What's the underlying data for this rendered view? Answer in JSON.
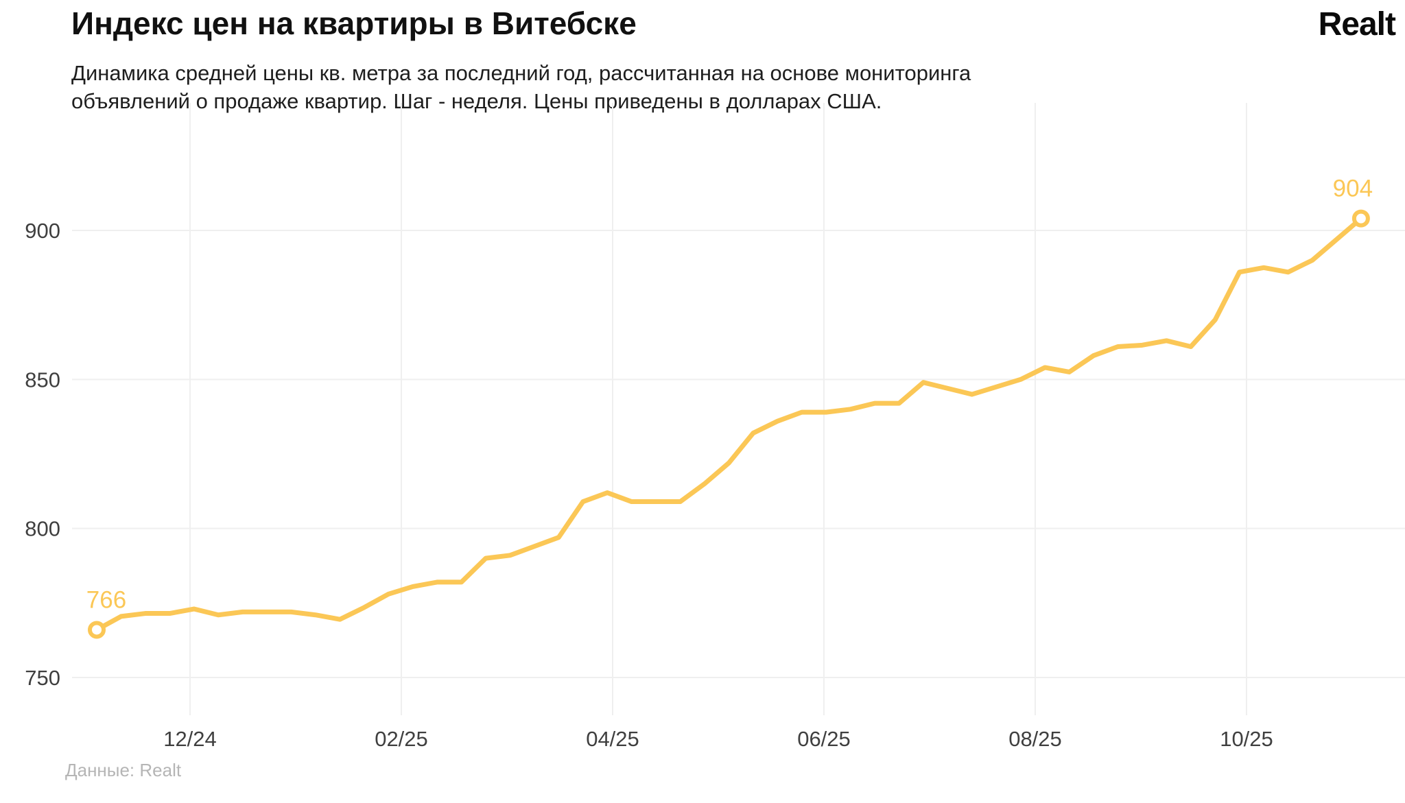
{
  "header": {
    "title": "Индекс цен на квартиры в Витебске",
    "subtitle_line1": "Динамика средней цены кв. метра за последний год, рассчитанная на основе мониторинга",
    "subtitle_line2": "объявлений о продаже квартир. Шаг - неделя. Цены приведены в долларах США.",
    "logo": "Realt"
  },
  "footer": {
    "source": "Данные: Realt"
  },
  "chart_data": {
    "type": "line",
    "title": "Индекс цен на квартиры в Витебске",
    "series_name": "Средняя цена кв. метра, USD",
    "step": "неделя",
    "x_tick_labels": [
      "12/24",
      "02/25",
      "04/25",
      "06/25",
      "08/25",
      "10/25"
    ],
    "y_ticks": [
      900,
      850,
      800,
      750
    ],
    "y_axis_range": [
      737,
      915
    ],
    "grid": true,
    "legend_position": "none",
    "line_color": "#FBC756",
    "axis_text_color": "#3f3f3f",
    "grid_color": "#efefef",
    "first_point_label": "766",
    "last_point_label": "904",
    "values": [
      766,
      770.5,
      771.5,
      771.5,
      773,
      771,
      772,
      772,
      772,
      771,
      769.5,
      773.5,
      778,
      780.5,
      782,
      782,
      790,
      791,
      794,
      797,
      809,
      812,
      809,
      809,
      809,
      815,
      822,
      832,
      836,
      839,
      839,
      840,
      842,
      842,
      849,
      847,
      845,
      847.5,
      850,
      854,
      852.5,
      858,
      861,
      861.5,
      863,
      861,
      870,
      886,
      887.5,
      886,
      890,
      897,
      904
    ]
  }
}
